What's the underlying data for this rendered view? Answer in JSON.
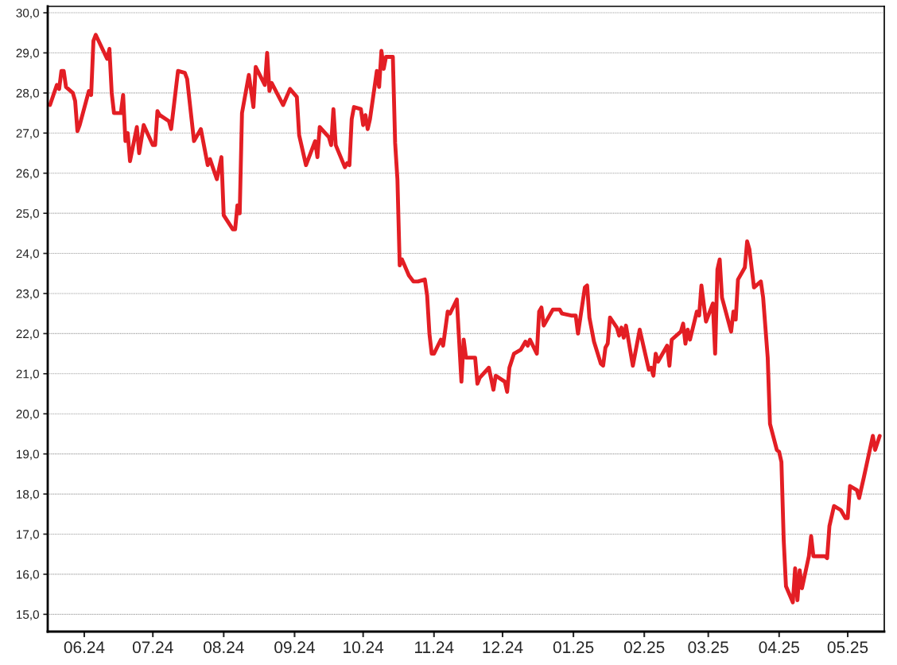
{
  "chart_data": {
    "type": "line",
    "x": [
      "2024-05-17",
      "2024-05-20",
      "2024-05-21",
      "2024-05-22",
      "2024-05-23",
      "2024-05-24",
      "2024-05-27",
      "2024-05-28",
      "2024-05-29",
      "2024-05-30",
      "2024-06-03",
      "2024-06-04",
      "2024-06-05",
      "2024-06-06",
      "2024-06-11",
      "2024-06-12",
      "2024-06-13",
      "2024-06-14",
      "2024-06-17",
      "2024-06-18",
      "2024-06-19",
      "2024-06-20",
      "2024-06-21",
      "2024-06-24",
      "2024-06-25",
      "2024-06-27",
      "2024-07-01",
      "2024-07-02",
      "2024-07-03",
      "2024-07-04",
      "2024-07-08",
      "2024-07-09",
      "2024-07-12",
      "2024-07-15",
      "2024-07-16",
      "2024-07-19",
      "2024-07-22",
      "2024-07-25",
      "2024-07-26",
      "2024-07-29",
      "2024-07-31",
      "2024-08-01",
      "2024-08-05",
      "2024-08-06",
      "2024-08-07",
      "2024-08-08",
      "2024-08-09",
      "2024-08-12",
      "2024-08-14",
      "2024-08-15",
      "2024-08-19",
      "2024-08-20",
      "2024-08-21",
      "2024-08-22",
      "2024-08-27",
      "2024-08-30",
      "2024-09-02",
      "2024-09-03",
      "2024-09-06",
      "2024-09-10",
      "2024-09-11",
      "2024-09-12",
      "2024-09-16",
      "2024-09-17",
      "2024-09-18",
      "2024-09-19",
      "2024-09-23",
      "2024-09-24",
      "2024-09-25",
      "2024-09-26",
      "2024-09-27",
      "2024-09-30",
      "2024-10-01",
      "2024-10-02",
      "2024-10-03",
      "2024-10-04",
      "2024-10-07",
      "2024-10-08",
      "2024-10-09",
      "2024-10-10",
      "2024-10-11",
      "2024-10-14",
      "2024-10-15",
      "2024-10-16",
      "2024-10-17",
      "2024-10-18",
      "2024-10-21",
      "2024-10-23",
      "2024-10-25",
      "2024-10-28",
      "2024-10-29",
      "2024-10-30",
      "2024-10-31",
      "2024-11-01",
      "2024-11-04",
      "2024-11-05",
      "2024-11-07",
      "2024-11-08",
      "2024-11-11",
      "2024-11-13",
      "2024-11-14",
      "2024-11-15",
      "2024-11-19",
      "2024-11-20",
      "2024-11-21",
      "2024-11-25",
      "2024-11-27",
      "2024-11-28",
      "2024-12-02",
      "2024-12-03",
      "2024-12-04",
      "2024-12-06",
      "2024-12-09",
      "2024-12-11",
      "2024-12-12",
      "2024-12-13",
      "2024-12-16",
      "2024-12-17",
      "2024-12-18",
      "2024-12-19",
      "2024-12-23",
      "2024-12-26",
      "2024-12-27",
      "2024-12-31",
      "2025-01-02",
      "2025-01-03",
      "2025-01-06",
      "2025-01-07",
      "2025-01-08",
      "2025-01-10",
      "2025-01-13",
      "2025-01-14",
      "2025-01-15",
      "2025-01-16",
      "2025-01-17",
      "2025-01-20",
      "2025-01-21",
      "2025-01-22",
      "2025-01-23",
      "2025-01-24",
      "2025-01-27",
      "2025-01-30",
      "2025-02-03",
      "2025-02-04",
      "2025-02-05",
      "2025-02-06",
      "2025-02-07",
      "2025-02-11",
      "2025-02-12",
      "2025-02-13",
      "2025-02-17",
      "2025-02-18",
      "2025-02-19",
      "2025-02-20",
      "2025-02-21",
      "2025-02-24",
      "2025-02-25",
      "2025-02-26",
      "2025-02-28",
      "2025-03-03",
      "2025-03-04",
      "2025-03-05",
      "2025-03-06",
      "2025-03-07",
      "2025-03-11",
      "2025-03-12",
      "2025-03-13",
      "2025-03-14",
      "2025-03-17",
      "2025-03-18",
      "2025-03-19",
      "2025-03-21",
      "2025-03-24",
      "2025-03-25",
      "2025-03-27",
      "2025-03-28",
      "2025-03-31",
      "2025-04-01",
      "2025-04-02",
      "2025-04-03",
      "2025-04-04",
      "2025-04-07",
      "2025-04-08",
      "2025-04-09",
      "2025-04-10",
      "2025-04-11",
      "2025-04-14",
      "2025-04-15",
      "2025-04-16",
      "2025-04-21",
      "2025-04-22",
      "2025-04-23",
      "2025-04-25",
      "2025-04-28",
      "2025-04-30",
      "2025-05-01",
      "2025-05-02",
      "2025-05-05",
      "2025-05-06",
      "2025-05-08",
      "2025-05-12",
      "2025-05-13",
      "2025-05-15"
    ],
    "series": [
      {
        "color": "#e31e24",
        "values": [
          27.7,
          28.2,
          28.1,
          28.55,
          28.55,
          28.15,
          28.0,
          27.8,
          27.05,
          27.2,
          28.05,
          27.95,
          29.3,
          29.45,
          28.85,
          29.1,
          28.0,
          27.5,
          27.5,
          27.95,
          26.8,
          27.0,
          26.3,
          27.15,
          26.5,
          27.2,
          26.7,
          26.7,
          27.55,
          27.45,
          27.3,
          27.1,
          28.55,
          28.5,
          28.35,
          26.8,
          27.1,
          26.2,
          26.35,
          25.85,
          26.4,
          24.95,
          24.6,
          24.6,
          25.2,
          25.0,
          27.5,
          28.45,
          27.65,
          28.65,
          28.2,
          29.0,
          28.05,
          28.25,
          27.7,
          28.1,
          27.9,
          26.95,
          26.2,
          26.8,
          26.4,
          27.15,
          26.9,
          26.7,
          27.6,
          26.7,
          26.15,
          26.25,
          26.2,
          27.35,
          27.65,
          27.6,
          27.2,
          27.45,
          27.1,
          27.35,
          28.55,
          28.15,
          29.05,
          28.6,
          28.9,
          28.9,
          26.75,
          25.85,
          23.7,
          23.85,
          23.45,
          23.3,
          23.3,
          23.35,
          22.95,
          22.0,
          21.5,
          21.5,
          21.85,
          21.7,
          22.55,
          22.5,
          22.85,
          20.8,
          21.85,
          21.4,
          21.4,
          20.75,
          20.9,
          21.15,
          20.6,
          20.95,
          20.8,
          20.55,
          21.15,
          21.5,
          21.6,
          21.8,
          21.7,
          21.85,
          21.5,
          22.55,
          22.65,
          22.2,
          22.6,
          22.6,
          22.5,
          22.45,
          22.45,
          22.0,
          23.15,
          23.2,
          22.4,
          21.8,
          21.25,
          21.2,
          21.65,
          21.75,
          22.4,
          22.15,
          21.95,
          22.15,
          21.9,
          22.2,
          21.2,
          22.1,
          21.1,
          21.15,
          20.95,
          21.5,
          21.3,
          21.7,
          21.2,
          21.85,
          22.05,
          22.25,
          21.75,
          22.1,
          21.85,
          22.55,
          22.45,
          23.2,
          22.3,
          22.75,
          21.5,
          23.6,
          23.85,
          22.9,
          22.05,
          22.55,
          22.35,
          23.35,
          23.65,
          24.3,
          24.1,
          23.15,
          23.3,
          22.9,
          21.4,
          19.75,
          19.1,
          19.05,
          18.8,
          16.85,
          15.7,
          15.3,
          16.15,
          15.35,
          16.1,
          15.65,
          16.45,
          16.95,
          16.45,
          16.45,
          16.4,
          17.2,
          17.7,
          17.6,
          17.4,
          17.4,
          18.2,
          18.1,
          17.9,
          18.4,
          19.45,
          19.1,
          19.45
        ]
      }
    ],
    "xlim": [
      "2024-05-16",
      "2025-05-17"
    ],
    "xticks": [
      {
        "value": "2024-06-01",
        "label": "06.24"
      },
      {
        "value": "2024-07-01",
        "label": "07.24"
      },
      {
        "value": "2024-08-01",
        "label": "08.24"
      },
      {
        "value": "2024-09-01",
        "label": "09.24"
      },
      {
        "value": "2024-10-01",
        "label": "10.24"
      },
      {
        "value": "2024-11-01",
        "label": "11.24"
      },
      {
        "value": "2024-12-01",
        "label": "12.24"
      },
      {
        "value": "2025-01-01",
        "label": "01.25"
      },
      {
        "value": "2025-02-01",
        "label": "02.25"
      },
      {
        "value": "2025-03-01",
        "label": "03.25"
      },
      {
        "value": "2025-04-01",
        "label": "04.25"
      },
      {
        "value": "2025-05-01",
        "label": "05.25"
      }
    ],
    "ylim": [
      14.57,
      30.16
    ],
    "yticks": [
      {
        "value": 15,
        "label": "15,0"
      },
      {
        "value": 16,
        "label": "16,0"
      },
      {
        "value": 17,
        "label": "17,0"
      },
      {
        "value": 18,
        "label": "18,0"
      },
      {
        "value": 19,
        "label": "19,0"
      },
      {
        "value": 20,
        "label": "20,0"
      },
      {
        "value": 21,
        "label": "21,0"
      },
      {
        "value": 22,
        "label": "22,0"
      },
      {
        "value": 23,
        "label": "23,0"
      },
      {
        "value": 24,
        "label": "24,0"
      },
      {
        "value": 25,
        "label": "25,0"
      },
      {
        "value": 26,
        "label": "26,0"
      },
      {
        "value": 27,
        "label": "27,0"
      },
      {
        "value": 28,
        "label": "28,0"
      },
      {
        "value": 29,
        "label": "29,0"
      },
      {
        "value": 30,
        "label": "30,0"
      }
    ],
    "grid": "y",
    "legend": false,
    "marker": "none",
    "line_style": "solid"
  }
}
